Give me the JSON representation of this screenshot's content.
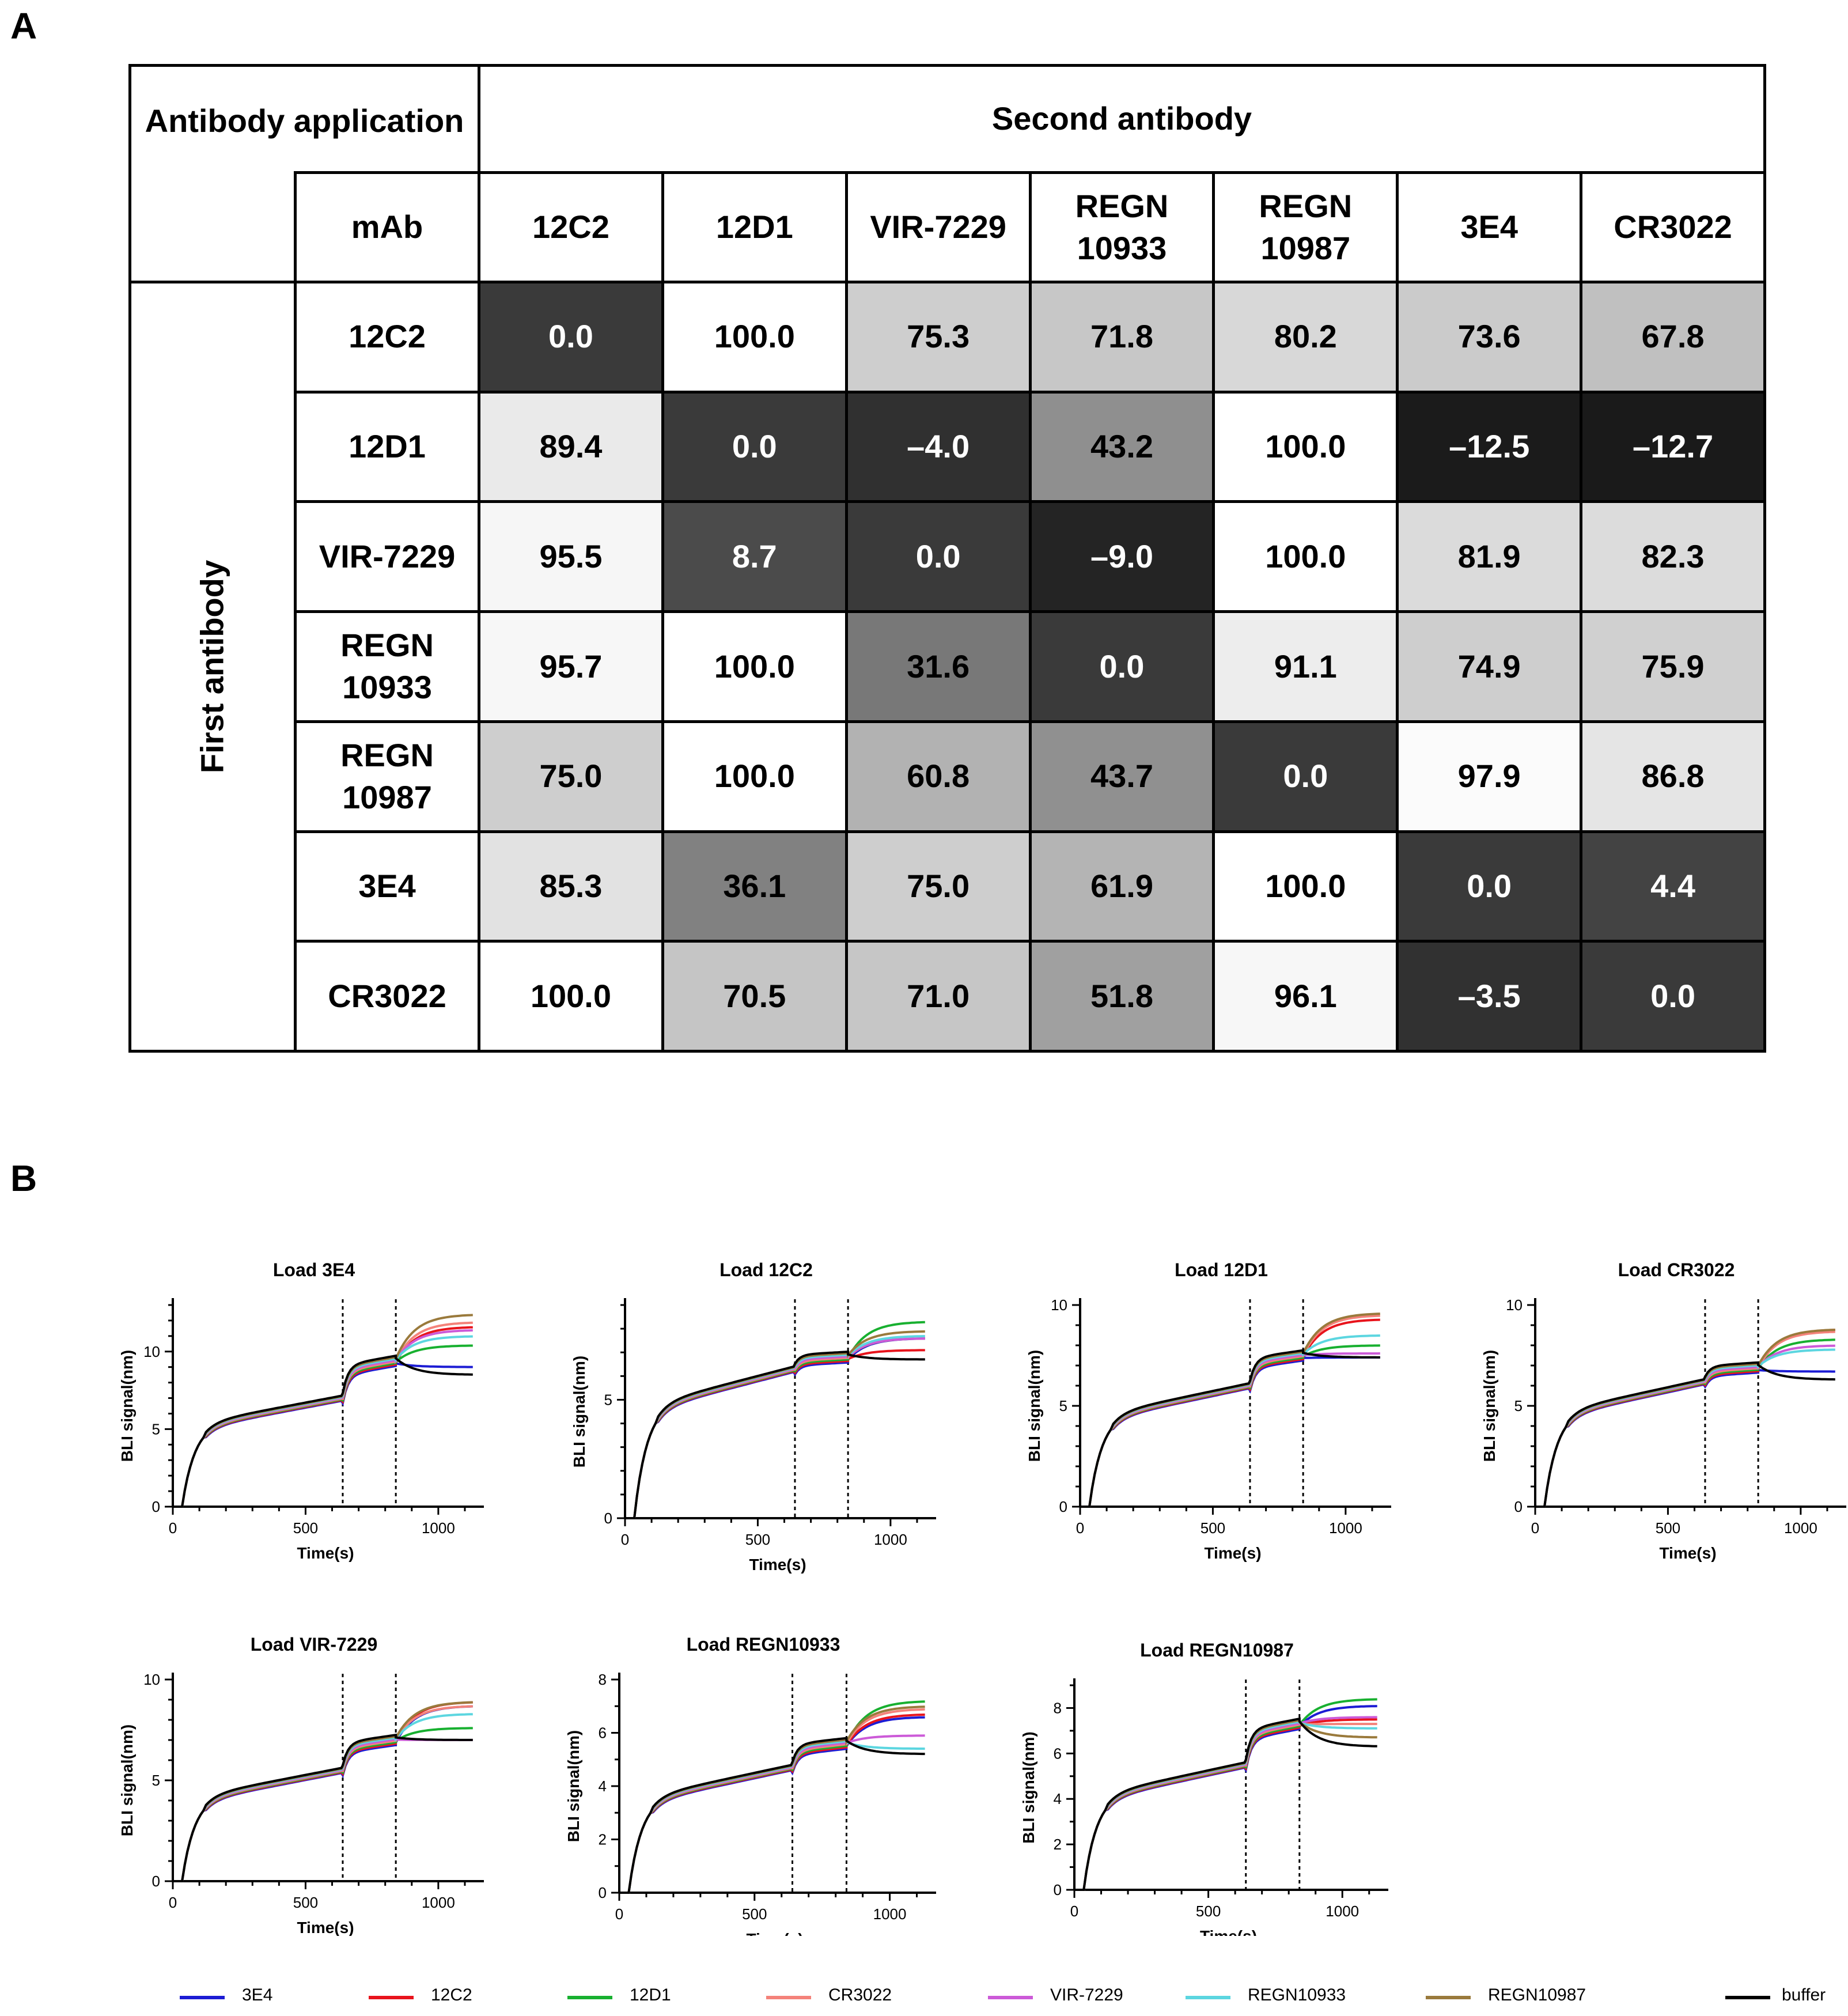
{
  "panels": {
    "a": "A",
    "b": "B"
  },
  "table": {
    "header_application": "Antibody application",
    "header_second": "Second antibody",
    "header_mab": "mAb",
    "header_first": "First antibody",
    "columns": [
      {
        "line1": "12C2",
        "line2": ""
      },
      {
        "line1": "12D1",
        "line2": ""
      },
      {
        "line1": "VIR-7229",
        "line2": ""
      },
      {
        "line1": "REGN",
        "line2": "10933"
      },
      {
        "line1": "REGN",
        "line2": "10987"
      },
      {
        "line1": "3E4",
        "line2": ""
      },
      {
        "line1": "CR3022",
        "line2": ""
      }
    ],
    "rows": [
      {
        "line1": "12C2",
        "line2": "",
        "values": [
          "0.0",
          "100.0",
          "75.3",
          "71.8",
          "80.2",
          "73.6",
          "67.8"
        ]
      },
      {
        "line1": "12D1",
        "line2": "",
        "values": [
          "89.4",
          "0.0",
          "–4.0",
          "43.2",
          "100.0",
          "–12.5",
          "–12.7"
        ]
      },
      {
        "line1": "VIR-7229",
        "line2": "",
        "values": [
          "95.5",
          "8.7",
          "0.0",
          "–9.0",
          "100.0",
          "81.9",
          "82.3"
        ]
      },
      {
        "line1": "REGN",
        "line2": "10933",
        "values": [
          "95.7",
          "100.0",
          "31.6",
          "0.0",
          "91.1",
          "74.9",
          "75.9"
        ]
      },
      {
        "line1": "REGN",
        "line2": "10987",
        "values": [
          "75.0",
          "100.0",
          "60.8",
          "43.7",
          "0.0",
          "97.9",
          "86.8"
        ]
      },
      {
        "line1": "3E4",
        "line2": "",
        "values": [
          "85.3",
          "36.1",
          "75.0",
          "61.9",
          "100.0",
          "0.0",
          "4.4"
        ]
      },
      {
        "line1": "CR3022",
        "line2": "",
        "values": [
          "100.0",
          "70.5",
          "71.0",
          "51.8",
          "96.1",
          "–3.5",
          "0.0"
        ]
      }
    ]
  },
  "legend": [
    {
      "name": "3E4",
      "color": "#1c1cd4"
    },
    {
      "name": "12C2",
      "color": "#e8141c"
    },
    {
      "name": "12D1",
      "color": "#18b030"
    },
    {
      "name": "CR3022",
      "color": "#f4827a"
    },
    {
      "name": "VIR-7229",
      "color": "#cc5ad8"
    },
    {
      "name": "REGN10933",
      "color": "#5cd6e0"
    },
    {
      "name": "REGN10987",
      "color": "#9a7a3c"
    },
    {
      "name": "buffer",
      "color": "#000000"
    }
  ],
  "chart_data": [
    {
      "type": "line",
      "title": "Load 3E4",
      "xlabel": "Time(s)",
      "ylabel": "BLI signal(nm)",
      "xlim": [
        0,
        1150
      ],
      "ylim": [
        0,
        13
      ],
      "xticks": [
        0,
        500,
        1000
      ],
      "yticks": [
        0,
        5,
        10
      ],
      "load_end": 640,
      "phase1": [
        0,
        7.0
      ],
      "assoc1_end": 9.4,
      "markers": [
        640,
        840
      ],
      "end_values": {
        "3E4": 9.0,
        "12C2": 11.6,
        "12D1": 10.4,
        "CR3022": 11.9,
        "VIR-7229": 11.4,
        "REGN10933": 11.0,
        "REGN10987": 12.4,
        "buffer": 8.5
      }
    },
    {
      "type": "line",
      "title": "Load 12C2",
      "xlabel": "Time(s)",
      "ylabel": "BLI signal(nm)",
      "xlim": [
        0,
        1150
      ],
      "ylim": [
        0,
        9
      ],
      "xticks": [
        0,
        500,
        1000
      ],
      "yticks": [
        0,
        5
      ],
      "load_end": 640,
      "phase1": [
        0,
        6.3
      ],
      "assoc1_end": 6.8,
      "markers": [
        640,
        840
      ],
      "end_values": {
        "3E4": 7.6,
        "12C2": 7.1,
        "12D1": 8.3,
        "CR3022": 7.6,
        "VIR-7229": 7.6,
        "REGN10933": 7.7,
        "REGN10987": 7.9,
        "buffer": 6.7
      }
    },
    {
      "type": "line",
      "title": "Load 12D1",
      "xlabel": "Time(s)",
      "ylabel": "BLI signal(nm)",
      "xlim": [
        0,
        1150
      ],
      "ylim": [
        0,
        10
      ],
      "xticks": [
        0,
        500,
        1000
      ],
      "yticks": [
        0,
        5,
        10
      ],
      "load_end": 640,
      "phase1": [
        0,
        6.0
      ],
      "assoc1_end": 7.5,
      "markers": [
        640,
        840
      ],
      "end_values": {
        "3E4": 7.4,
        "12C2": 9.3,
        "12D1": 8.0,
        "CR3022": 9.5,
        "VIR-7229": 7.6,
        "REGN10933": 8.5,
        "REGN10987": 9.6,
        "buffer": 7.4
      }
    },
    {
      "type": "line",
      "title": "Load CR3022",
      "xlabel": "Time(s)",
      "ylabel": "BLI signal(nm)",
      "xlim": [
        0,
        1150
      ],
      "ylim": [
        0,
        10
      ],
      "xticks": [
        0,
        500,
        1000
      ],
      "yticks": [
        0,
        5,
        10
      ],
      "load_end": 640,
      "phase1": [
        0,
        6.2
      ],
      "assoc1_end": 6.9,
      "markers": [
        640,
        840
      ],
      "end_values": {
        "3E4": 6.7,
        "12C2": 8.8,
        "12D1": 8.3,
        "CR3022": 8.7,
        "VIR-7229": 8.0,
        "REGN10933": 7.8,
        "REGN10987": 8.8,
        "buffer": 6.3
      }
    },
    {
      "type": "line",
      "title": "Load VIR-7229",
      "xlabel": "Time(s)",
      "ylabel": "BLI signal(nm)",
      "xlim": [
        0,
        1150
      ],
      "ylim": [
        0,
        10
      ],
      "xticks": [
        0,
        500,
        1000
      ],
      "yticks": [
        0,
        5,
        10
      ],
      "load_end": 640,
      "phase1": [
        0,
        5.5
      ],
      "assoc1_end": 7.0,
      "markers": [
        640,
        840
      ],
      "end_values": {
        "3E4": 8.7,
        "12C2": 8.9,
        "12D1": 7.6,
        "CR3022": 8.7,
        "VIR-7229": 7.0,
        "REGN10933": 8.3,
        "REGN10987": 8.9,
        "buffer": 7.0
      }
    },
    {
      "type": "line",
      "title": "Load REGN10933",
      "xlabel": "Time(s)",
      "ylabel": "BLI signal(nm)",
      "xlim": [
        0,
        1150
      ],
      "ylim": [
        0,
        8
      ],
      "xticks": [
        0,
        500,
        1000
      ],
      "yticks": [
        0,
        2,
        4,
        6,
        8
      ],
      "load_end": 640,
      "phase1": [
        0,
        4.7
      ],
      "assoc1_end": 5.6,
      "markers": [
        640,
        840
      ],
      "end_values": {
        "3E4": 6.6,
        "12C2": 6.7,
        "12D1": 7.2,
        "CR3022": 6.9,
        "VIR-7229": 5.9,
        "REGN10933": 5.4,
        "REGN10987": 7.0,
        "buffer": 5.2
      }
    },
    {
      "type": "line",
      "title": "Load REGN10987",
      "xlabel": "Time(s)",
      "ylabel": "BLI signal(nm)",
      "xlim": [
        0,
        1150
      ],
      "ylim": [
        0,
        9
      ],
      "xticks": [
        0,
        500,
        1000
      ],
      "yticks": [
        0,
        2,
        4,
        6,
        8
      ],
      "load_end": 640,
      "phase1": [
        0,
        5.5
      ],
      "assoc1_end": 7.3,
      "markers": [
        640,
        840
      ],
      "end_values": {
        "3E4": 8.1,
        "12C2": 7.5,
        "12D1": 8.4,
        "CR3022": 7.3,
        "VIR-7229": 7.6,
        "REGN10933": 7.1,
        "REGN10987": 6.7,
        "buffer": 6.3
      }
    }
  ]
}
